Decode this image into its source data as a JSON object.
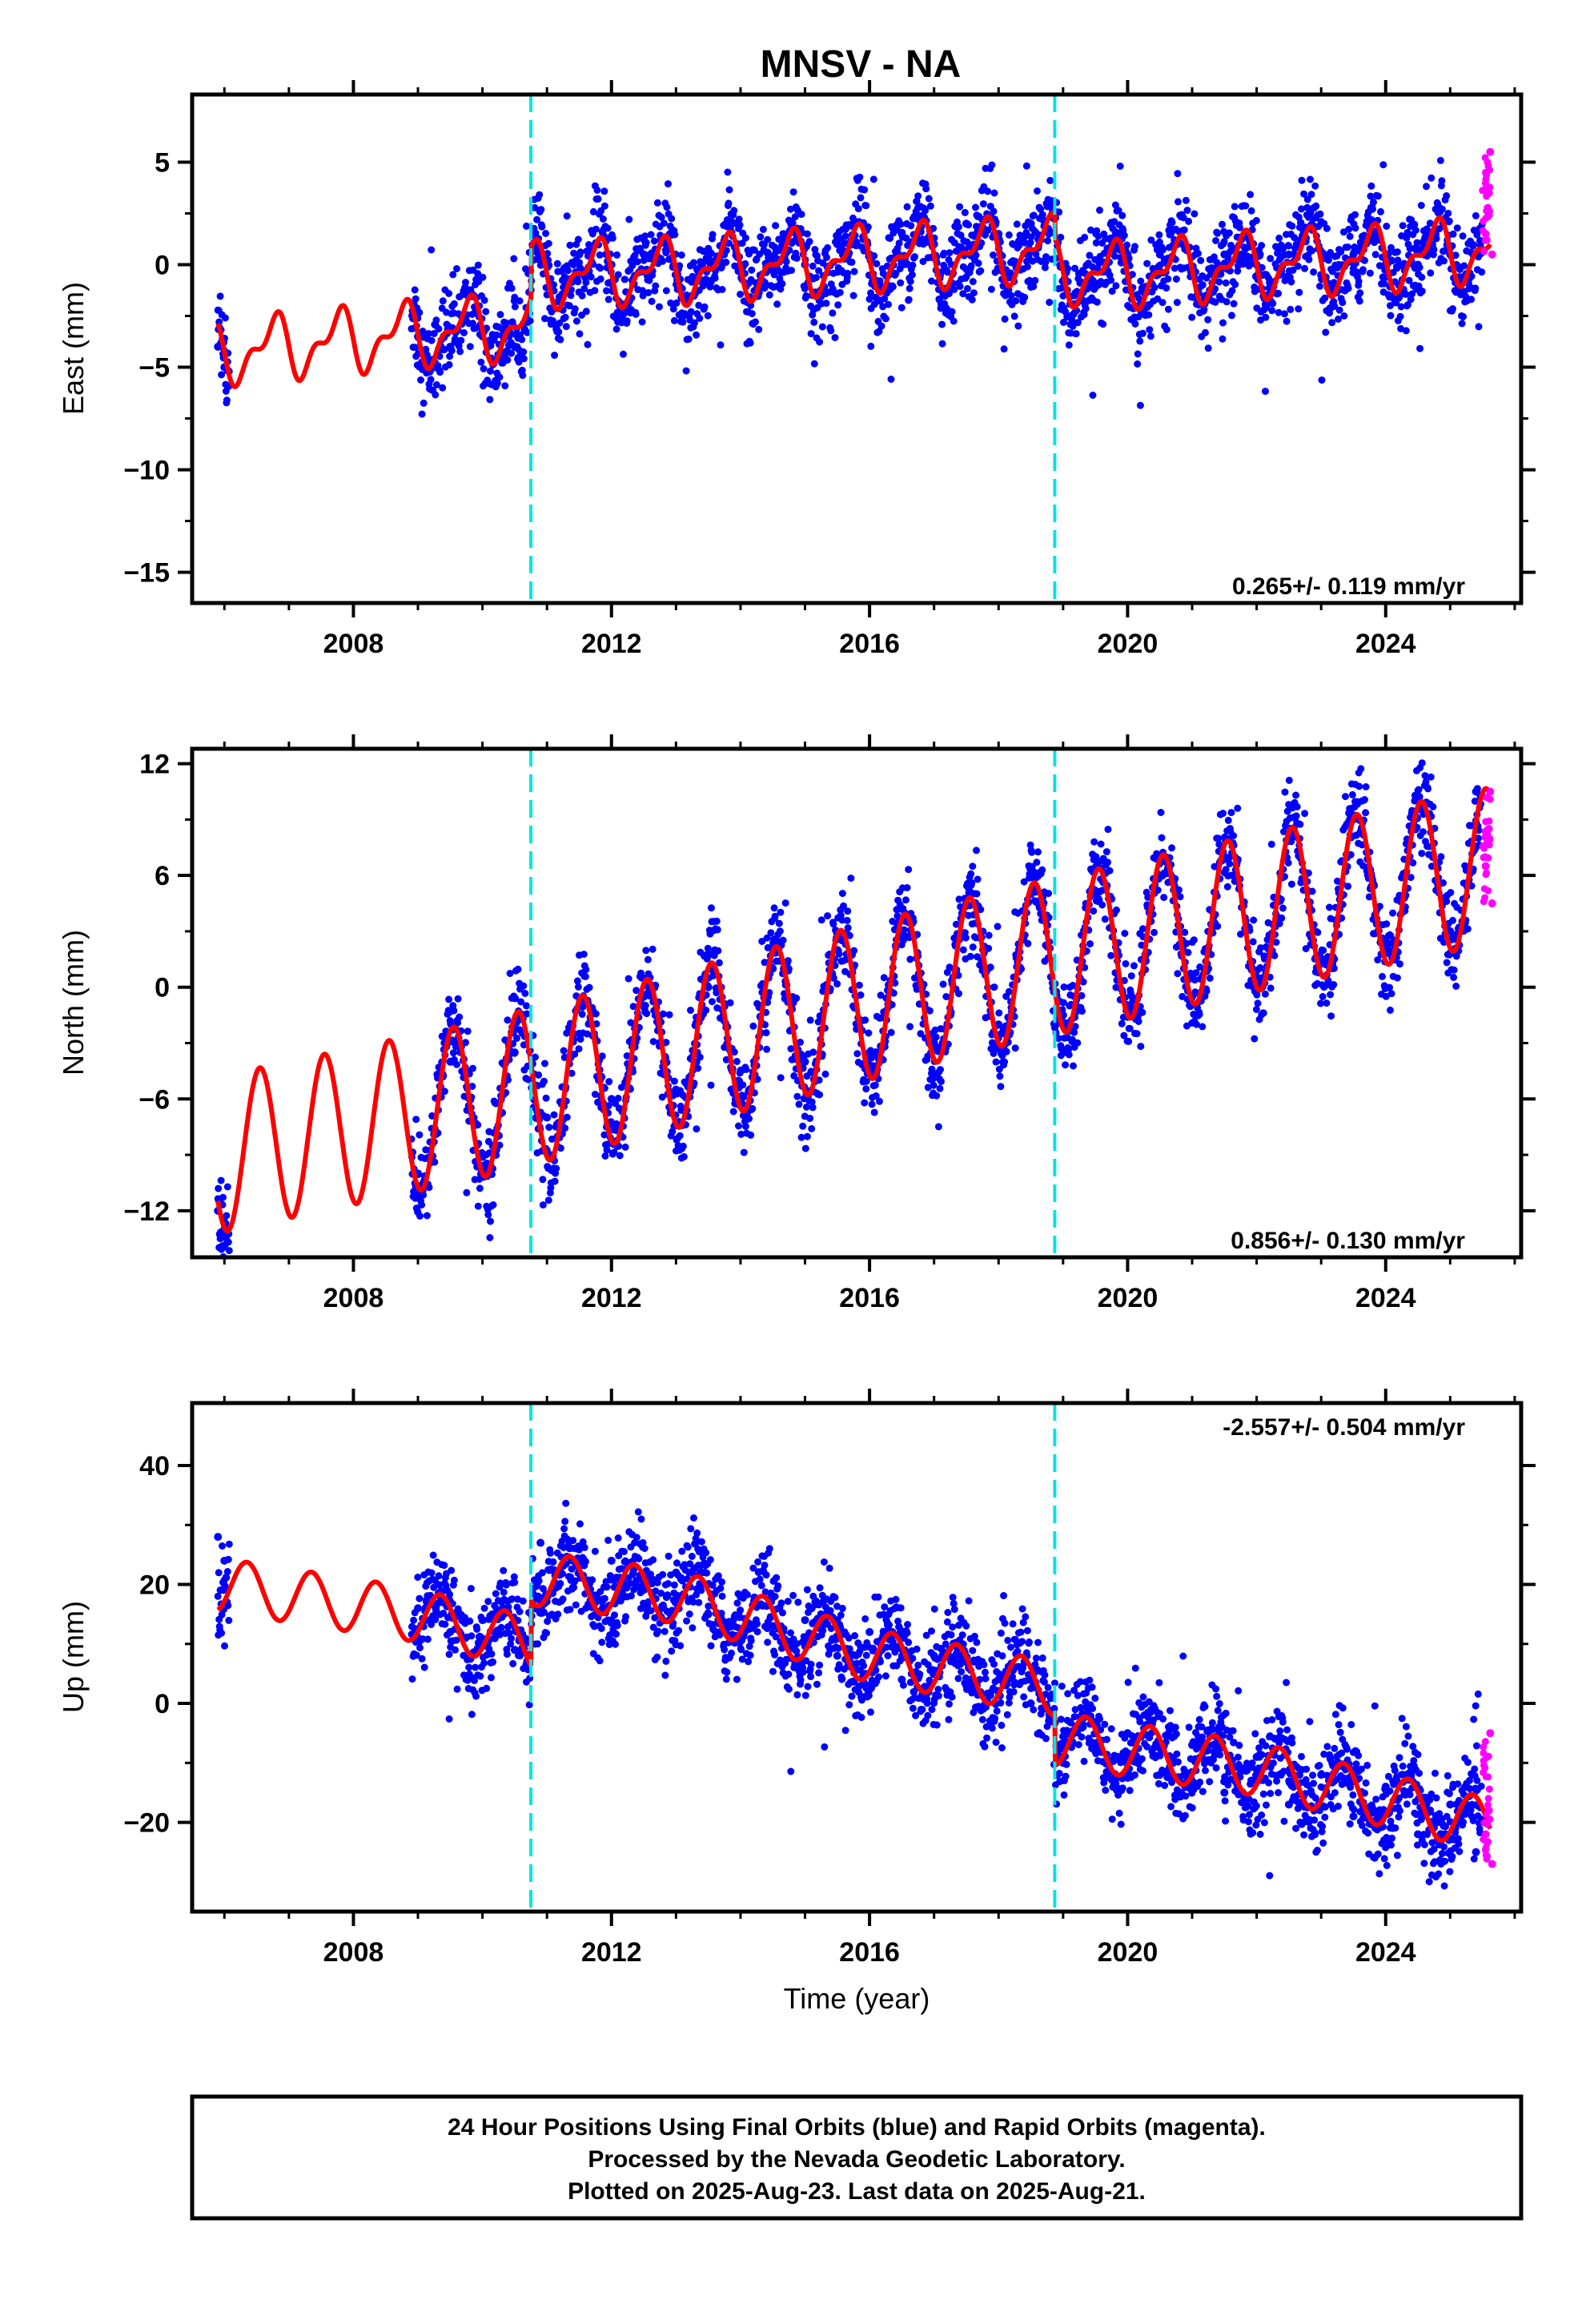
{
  "chart_data": {
    "type": "scatter",
    "title": "MNSV - NA",
    "xlabel": "Time (year)",
    "xlim": [
      2005.5,
      2026.1
    ],
    "x_ticks": [
      "2008",
      "2012",
      "2016",
      "2020",
      "2024"
    ],
    "x_tick_values": [
      2008,
      2012,
      2016,
      2020,
      2024
    ],
    "offset_lines": [
      2010.75,
      2018.87
    ],
    "colors": {
      "final": "#0000ff",
      "rapid": "#ff00ff",
      "model": "#ff0000",
      "offset": "#00e5e5"
    },
    "panels": [
      {
        "name": "east",
        "ylabel": "East (mm)",
        "ylim": [
          -16.5,
          8.3
        ],
        "y_ticks": [
          "5",
          "0",
          "−5",
          "−10",
          "−15"
        ],
        "y_tick_values": [
          5,
          0,
          -5,
          -10,
          -15
        ],
        "rate_label": "0.265+/- 0.119 mm/yr",
        "rate_pos": "bottom-right",
        "series": [
          {
            "name": "Final Orbits",
            "x": [
              2005.9,
              2006.0,
              2009.0,
              2009.5,
              2010.0,
              2010.5,
              2010.9,
              2011.5,
              2012.0,
              2012.5,
              2013.0,
              2013.5,
              2014.0,
              2014.5,
              2015.0,
              2015.5,
              2016.0,
              2016.5,
              2017.0,
              2017.5,
              2018.0,
              2018.5,
              2019.0,
              2019.5,
              2020.0,
              2020.5,
              2021.0,
              2021.5,
              2022.0,
              2022.5,
              2023.0,
              2023.5,
              2024.0,
              2024.5,
              2025.0,
              2025.4
            ],
            "y": [
              -4.0,
              -5.0,
              -3.5,
              -4.0,
              -3.5,
              -4.0,
              0.5,
              0.5,
              0.0,
              0.5,
              -0.5,
              0.5,
              0.0,
              0.3,
              0.0,
              1.0,
              0.5,
              1.5,
              1.0,
              2.0,
              1.5,
              2.0,
              0.0,
              -1.0,
              0.5,
              0.5,
              -0.5,
              0.5,
              0.0,
              0.5,
              -0.5,
              0.5,
              0.0,
              0.0,
              0.5,
              0.5
            ]
          },
          {
            "name": "Rapid Orbits",
            "x": [
              2025.55,
              2025.6,
              2025.62,
              2025.65
            ],
            "y": [
              1.5,
              3.5,
              5.5,
              0.5
            ]
          }
        ],
        "model": {
          "base": [
            [
              2005.9,
              -4.3
            ],
            [
              2008.9,
              -3.4
            ],
            [
              2010.75,
              -3.0
            ],
            [
              2010.76,
              -0.5
            ],
            [
              2013.0,
              -0.3
            ],
            [
              2016.0,
              0.3
            ],
            [
              2018.87,
              0.8
            ],
            [
              2018.88,
              -0.3
            ],
            [
              2020.0,
              -0.5
            ],
            [
              2022.0,
              0.0
            ],
            [
              2024.0,
              0.3
            ],
            [
              2025.6,
              0.8
            ]
          ],
          "amp1": 1.3,
          "ph1": 0.5,
          "amp2": 0.7,
          "ph2": 0.25
        }
      },
      {
        "name": "north",
        "ylabel": "North (mm)",
        "ylim": [
          -14.5,
          12.8
        ],
        "y_ticks": [
          "12",
          "6",
          "0",
          "−6",
          "−12"
        ],
        "y_tick_values": [
          12,
          6,
          0,
          -6,
          -12
        ],
        "rate_label": "0.856+/- 0.130 mm/yr",
        "rate_pos": "bottom-right",
        "series": [
          {
            "name": "Final Orbits",
            "x": [
              2005.9,
              2006.0,
              2009.0,
              2009.5,
              2010.0,
              2010.5,
              2011.0,
              2011.5,
              2012.0,
              2012.5,
              2013.0,
              2013.5,
              2014.0,
              2014.5,
              2015.0,
              2015.5,
              2016.0,
              2016.5,
              2017.0,
              2017.5,
              2018.0,
              2018.5,
              2019.0,
              2019.5,
              2020.0,
              2020.5,
              2021.0,
              2021.5,
              2022.0,
              2022.5,
              2023.0,
              2023.5,
              2024.0,
              2024.5,
              2025.0,
              2025.4
            ],
            "y": [
              -12.0,
              -13.0,
              -10.0,
              -4.0,
              -9.0,
              -3.5,
              -7.0,
              -2.5,
              -6.0,
              -1.0,
              -5.5,
              0.0,
              -4.5,
              1.0,
              -4.0,
              2.0,
              -3.5,
              3.0,
              -3.0,
              4.5,
              -2.0,
              5.0,
              -1.5,
              5.0,
              -1.0,
              6.0,
              -0.5,
              7.0,
              0.5,
              8.0,
              1.5,
              9.0,
              2.5,
              10.0,
              3.0,
              10.5
            ]
          },
          {
            "name": "Rapid Orbits",
            "x": [
              2025.55,
              2025.6,
              2025.62,
              2025.65
            ],
            "y": [
              6.5,
              8.5,
              10.5,
              4.5
            ]
          }
        ],
        "model": {
          "base": [
            [
              2005.9,
              -9.0
            ],
            [
              2010.0,
              -6.0
            ],
            [
              2014.0,
              -2.5
            ],
            [
              2018.0,
              1.0
            ],
            [
              2022.0,
              4.0
            ],
            [
              2025.6,
              6.5
            ]
          ],
          "amp1": 4.2,
          "ph1": 0.3,
          "amp2": 0.0,
          "ph2": 0.0
        }
      },
      {
        "name": "up",
        "ylabel": "Up (mm)",
        "ylim": [
          -35,
          50.5
        ],
        "y_ticks": [
          "40",
          "20",
          "0",
          "−20"
        ],
        "y_tick_values": [
          40,
          20,
          0,
          -20
        ],
        "rate_label": "-2.557+/- 0.504 mm/yr",
        "rate_pos": "top-right",
        "series": [
          {
            "name": "Final Orbits",
            "x": [
              2005.9,
              2006.0,
              2009.0,
              2009.5,
              2010.0,
              2010.5,
              2010.9,
              2011.5,
              2012.0,
              2012.5,
              2013.0,
              2013.5,
              2014.0,
              2014.5,
              2015.0,
              2015.5,
              2016.0,
              2016.5,
              2017.0,
              2017.5,
              2018.0,
              2018.5,
              2019.0,
              2019.5,
              2020.0,
              2020.5,
              2021.0,
              2021.5,
              2022.0,
              2022.5,
              2023.0,
              2023.5,
              2024.0,
              2024.5,
              2025.0,
              2025.4
            ],
            "y": [
              28.0,
              24.0,
              16.0,
              12.0,
              14.0,
              9.0,
              27.0,
              22.0,
              24.0,
              20.0,
              22.0,
              15.0,
              18.0,
              13.0,
              14.0,
              8.0,
              12.0,
              4.0,
              8.0,
              3.0,
              4.0,
              0.0,
              -10.0,
              -8.0,
              -5.0,
              -12.0,
              -7.0,
              -15.0,
              -9.0,
              -17.0,
              -12.0,
              -19.0,
              -14.0,
              -22.0,
              -17.0,
              -25.0
            ]
          },
          {
            "name": "Rapid Orbits",
            "x": [
              2025.55,
              2025.6,
              2025.62,
              2025.65
            ],
            "y": [
              -22.0,
              -18.0,
              -5.0,
              -27.0
            ]
          }
        ],
        "model": {
          "base": [
            [
              2005.9,
              20.0
            ],
            [
              2008.9,
              15.0
            ],
            [
              2010.75,
              10.0
            ],
            [
              2010.76,
              21.0
            ],
            [
              2013.0,
              18.0
            ],
            [
              2016.0,
              8.0
            ],
            [
              2018.87,
              2.5
            ],
            [
              2018.88,
              -6.0
            ],
            [
              2022.0,
              -11.0
            ],
            [
              2025.6,
              -20.5
            ]
          ],
          "amp1": 4.5,
          "ph1": 0.1,
          "amp2": 0.0,
          "ph2": 0.0
        }
      }
    ]
  },
  "footer": {
    "line1": "24 Hour Positions Using Final Orbits (blue) and Rapid Orbits (magenta).",
    "line2": "Processed by the Nevada Geodetic Laboratory.",
    "line3": "Plotted on 2025-Aug-23. Last data on 2025-Aug-21."
  }
}
